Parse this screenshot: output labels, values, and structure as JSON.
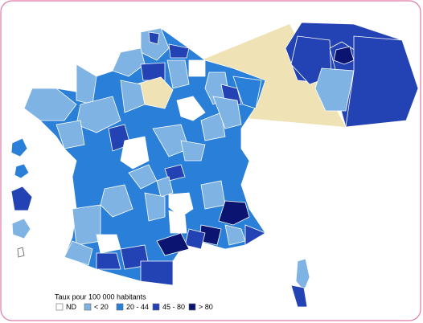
{
  "map": {
    "legend": {
      "title": "Taux pour 100 000 habitants",
      "items": [
        {
          "label": "ND",
          "color": "#ffffff"
        },
        {
          "label": "< 20",
          "color": "#7eb3e3"
        },
        {
          "label": "20 - 44",
          "color": "#2a80d9"
        },
        {
          "label": "45 - 80",
          "color": "#2343b5"
        },
        {
          "label": "> 80",
          "color": "#0b1470"
        }
      ]
    }
  }
}
